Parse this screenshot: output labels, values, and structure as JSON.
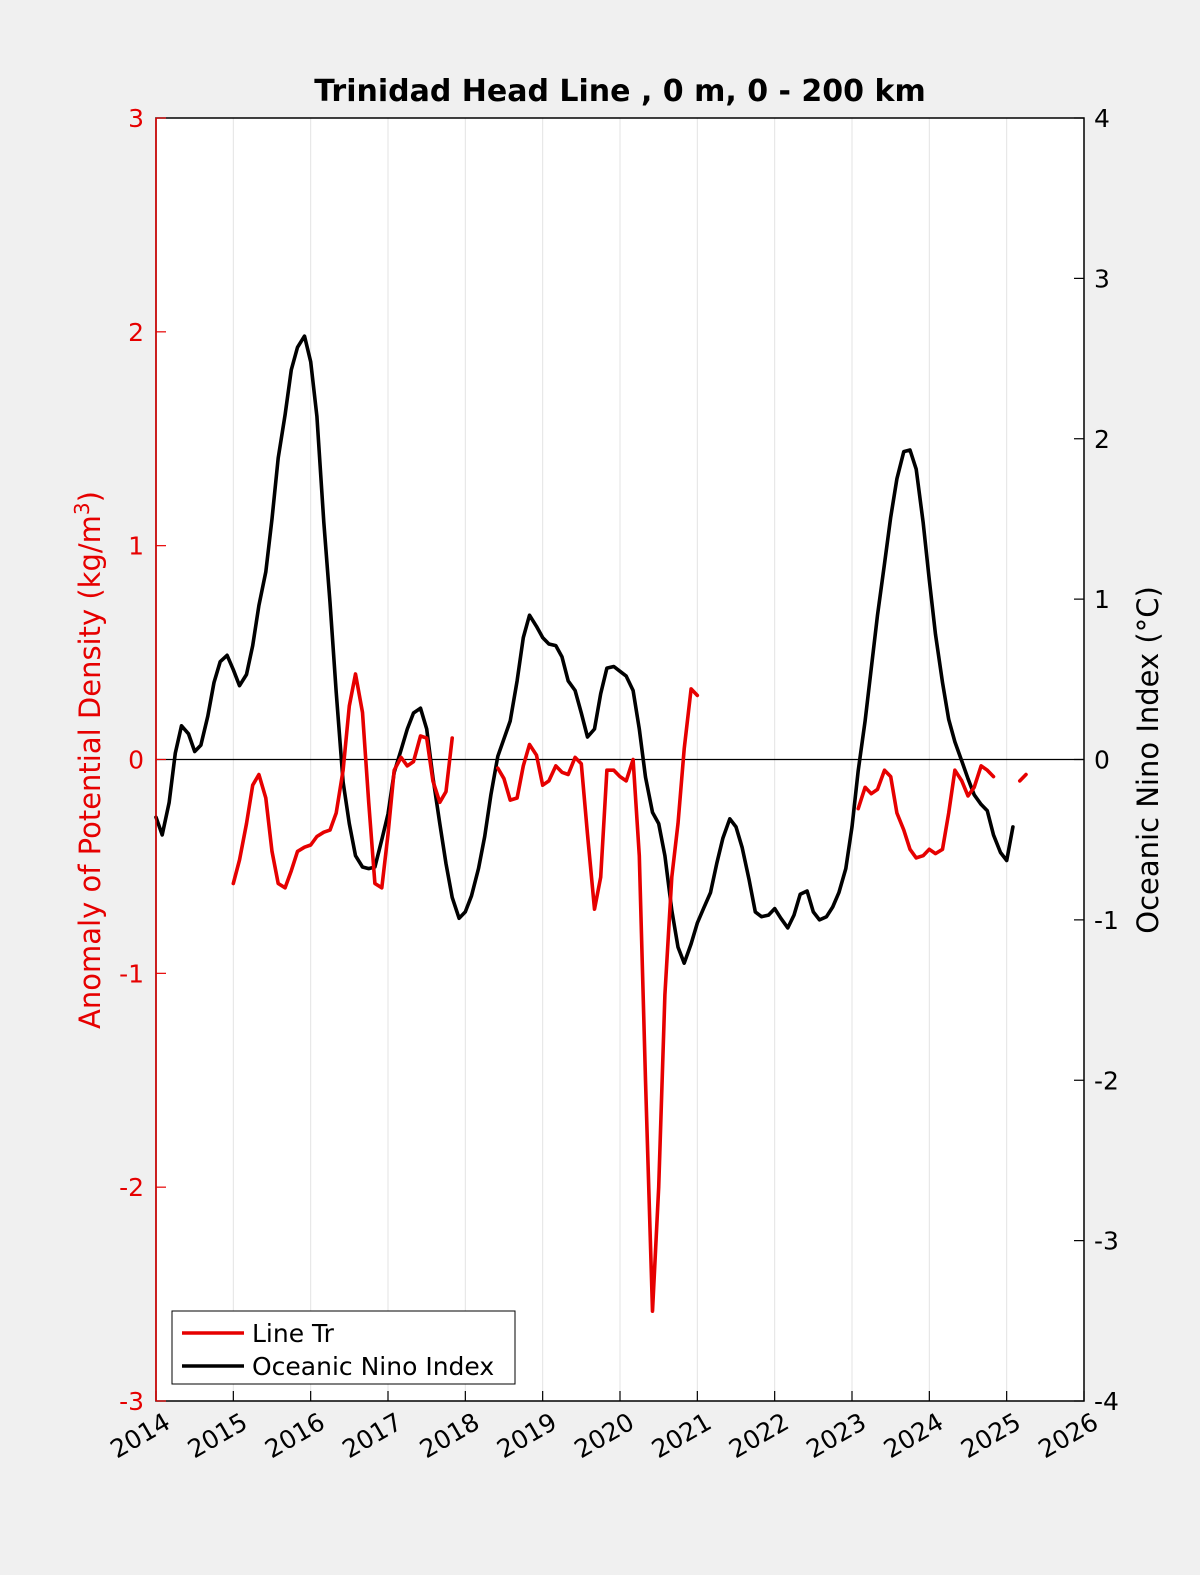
{
  "chart_data": {
    "type": "line",
    "title": "Trinidad Head Line , 0 m, 0 - 200 km",
    "ylabel_left": "Anomaly of Potential Density (kg/m",
    "ylabel_left_superscript": "3",
    "ylabel_left_close": ")",
    "ylabel_right": "Oceanic Nino Index (°C)",
    "xlim": [
      2014,
      2026
    ],
    "ylim_left": [
      -3,
      3
    ],
    "ylim_right": [
      -4,
      4
    ],
    "x_ticks": [
      "2014",
      "2015",
      "2016",
      "2017",
      "2018",
      "2019",
      "2020",
      "2021",
      "2022",
      "2023",
      "2024",
      "2025",
      "2026"
    ],
    "y_ticks_left": [
      "3",
      "2",
      "1",
      "0",
      "-1",
      "-2",
      "-3"
    ],
    "y_ticks_right": [
      "4",
      "3",
      "2",
      "1",
      "0",
      "-1",
      "-2",
      "-3",
      "-4"
    ],
    "grid": "vertical",
    "zero_line": true,
    "legend_position": "bottom-left",
    "colors": {
      "line_tr": "#e60000",
      "oni": "#000000",
      "left_axis": "#e60000",
      "right_axis": "#000000"
    },
    "series": [
      {
        "name": "Line Tr",
        "axis": "left",
        "segments": [
          [
            [
              2015.0,
              -0.58
            ],
            [
              2015.08,
              -0.47
            ],
            [
              2015.17,
              -0.3
            ],
            [
              2015.25,
              -0.12
            ],
            [
              2015.33,
              -0.07
            ],
            [
              2015.42,
              -0.18
            ],
            [
              2015.5,
              -0.43
            ],
            [
              2015.58,
              -0.58
            ],
            [
              2015.67,
              -0.6
            ],
            [
              2015.75,
              -0.52
            ],
            [
              2015.83,
              -0.43
            ],
            [
              2015.92,
              -0.41
            ],
            [
              2016.0,
              -0.4
            ],
            [
              2016.08,
              -0.36
            ],
            [
              2016.17,
              -0.34
            ],
            [
              2016.25,
              -0.33
            ],
            [
              2016.33,
              -0.25
            ],
            [
              2016.42,
              -0.05
            ],
            [
              2016.5,
              0.25
            ],
            [
              2016.58,
              0.4
            ],
            [
              2016.67,
              0.22
            ],
            [
              2016.75,
              -0.2
            ],
            [
              2016.83,
              -0.58
            ],
            [
              2016.92,
              -0.6
            ],
            [
              2017.0,
              -0.35
            ],
            [
              2017.08,
              -0.05
            ],
            [
              2017.17,
              0.01
            ],
            [
              2017.25,
              -0.03
            ],
            [
              2017.33,
              -0.01
            ],
            [
              2017.42,
              0.11
            ],
            [
              2017.5,
              0.1
            ],
            [
              2017.58,
              -0.1
            ],
            [
              2017.67,
              -0.2
            ],
            [
              2017.75,
              -0.15
            ],
            [
              2017.83,
              0.1
            ]
          ],
          [
            [
              2018.42,
              -0.04
            ],
            [
              2018.5,
              -0.09
            ],
            [
              2018.58,
              -0.19
            ],
            [
              2018.67,
              -0.18
            ],
            [
              2018.75,
              -0.03
            ],
            [
              2018.83,
              0.07
            ],
            [
              2018.92,
              0.02
            ],
            [
              2019.0,
              -0.12
            ],
            [
              2019.08,
              -0.1
            ],
            [
              2019.17,
              -0.03
            ],
            [
              2019.25,
              -0.06
            ],
            [
              2019.33,
              -0.07
            ],
            [
              2019.42,
              0.01
            ],
            [
              2019.5,
              -0.02
            ],
            [
              2019.58,
              -0.35
            ],
            [
              2019.67,
              -0.7
            ],
            [
              2019.75,
              -0.55
            ],
            [
              2019.83,
              -0.05
            ],
            [
              2019.92,
              -0.05
            ],
            [
              2020.0,
              -0.08
            ],
            [
              2020.08,
              -0.1
            ],
            [
              2020.17,
              0.0
            ],
            [
              2020.25,
              -0.45
            ],
            [
              2020.33,
              -1.5
            ],
            [
              2020.42,
              -2.58
            ],
            [
              2020.5,
              -2.0
            ],
            [
              2020.58,
              -1.1
            ],
            [
              2020.67,
              -0.55
            ],
            [
              2020.75,
              -0.3
            ],
            [
              2020.83,
              0.05
            ],
            [
              2020.92,
              0.33
            ],
            [
              2021.0,
              0.3
            ]
          ],
          [
            [
              2023.08,
              -0.23
            ],
            [
              2023.17,
              -0.13
            ],
            [
              2023.25,
              -0.16
            ],
            [
              2023.33,
              -0.14
            ],
            [
              2023.42,
              -0.05
            ],
            [
              2023.5,
              -0.08
            ],
            [
              2023.58,
              -0.25
            ],
            [
              2023.67,
              -0.33
            ],
            [
              2023.75,
              -0.42
            ],
            [
              2023.83,
              -0.46
            ],
            [
              2023.92,
              -0.45
            ],
            [
              2024.0,
              -0.42
            ],
            [
              2024.08,
              -0.44
            ],
            [
              2024.17,
              -0.42
            ],
            [
              2024.25,
              -0.25
            ],
            [
              2024.33,
              -0.05
            ],
            [
              2024.42,
              -0.1
            ],
            [
              2024.5,
              -0.17
            ],
            [
              2024.58,
              -0.13
            ],
            [
              2024.67,
              -0.03
            ],
            [
              2024.75,
              -0.05
            ],
            [
              2024.83,
              -0.08
            ]
          ],
          [
            [
              2025.17,
              -0.1
            ],
            [
              2025.25,
              -0.07
            ]
          ]
        ]
      },
      {
        "name": "Oceanic Nino Index",
        "axis": "right",
        "segments": [
          [
            [
              2014.0,
              -0.36
            ],
            [
              2014.08,
              -0.47
            ],
            [
              2014.17,
              -0.27
            ],
            [
              2014.25,
              0.04
            ],
            [
              2014.33,
              0.21
            ],
            [
              2014.42,
              0.16
            ],
            [
              2014.5,
              0.05
            ],
            [
              2014.58,
              0.09
            ],
            [
              2014.67,
              0.27
            ],
            [
              2014.75,
              0.48
            ],
            [
              2014.83,
              0.61
            ],
            [
              2014.92,
              0.65
            ],
            [
              2015.0,
              0.56
            ],
            [
              2015.08,
              0.46
            ],
            [
              2015.17,
              0.53
            ],
            [
              2015.25,
              0.71
            ],
            [
              2015.33,
              0.96
            ],
            [
              2015.42,
              1.17
            ],
            [
              2015.5,
              1.5
            ],
            [
              2015.58,
              1.88
            ],
            [
              2015.67,
              2.15
            ],
            [
              2015.75,
              2.43
            ],
            [
              2015.83,
              2.57
            ],
            [
              2015.92,
              2.64
            ],
            [
              2016.0,
              2.48
            ],
            [
              2016.08,
              2.14
            ],
            [
              2016.17,
              1.48
            ],
            [
              2016.25,
              0.98
            ],
            [
              2016.33,
              0.42
            ],
            [
              2016.42,
              -0.14
            ],
            [
              2016.5,
              -0.4
            ],
            [
              2016.58,
              -0.6
            ],
            [
              2016.67,
              -0.67
            ],
            [
              2016.75,
              -0.68
            ],
            [
              2016.83,
              -0.67
            ],
            [
              2016.92,
              -0.5
            ],
            [
              2017.0,
              -0.34
            ],
            [
              2017.08,
              -0.08
            ],
            [
              2017.17,
              0.06
            ],
            [
              2017.25,
              0.19
            ],
            [
              2017.33,
              0.29
            ],
            [
              2017.42,
              0.32
            ],
            [
              2017.5,
              0.19
            ],
            [
              2017.58,
              -0.11
            ],
            [
              2017.67,
              -0.4
            ],
            [
              2017.75,
              -0.65
            ],
            [
              2017.83,
              -0.86
            ],
            [
              2017.92,
              -0.99
            ],
            [
              2018.0,
              -0.95
            ],
            [
              2018.08,
              -0.85
            ],
            [
              2018.17,
              -0.68
            ],
            [
              2018.25,
              -0.48
            ],
            [
              2018.33,
              -0.22
            ],
            [
              2018.42,
              0.02
            ],
            [
              2018.5,
              0.13
            ],
            [
              2018.58,
              0.24
            ],
            [
              2018.67,
              0.49
            ],
            [
              2018.75,
              0.76
            ],
            [
              2018.83,
              0.9
            ],
            [
              2018.92,
              0.83
            ],
            [
              2019.0,
              0.76
            ],
            [
              2019.08,
              0.72
            ],
            [
              2019.17,
              0.71
            ],
            [
              2019.25,
              0.64
            ],
            [
              2019.33,
              0.49
            ],
            [
              2019.42,
              0.43
            ],
            [
              2019.5,
              0.29
            ],
            [
              2019.58,
              0.14
            ],
            [
              2019.67,
              0.19
            ],
            [
              2019.75,
              0.41
            ],
            [
              2019.83,
              0.57
            ],
            [
              2019.92,
              0.58
            ],
            [
              2020.0,
              0.55
            ],
            [
              2020.08,
              0.52
            ],
            [
              2020.17,
              0.43
            ],
            [
              2020.25,
              0.19
            ],
            [
              2020.33,
              -0.11
            ],
            [
              2020.42,
              -0.33
            ],
            [
              2020.5,
              -0.4
            ],
            [
              2020.58,
              -0.6
            ],
            [
              2020.67,
              -0.94
            ],
            [
              2020.75,
              -1.17
            ],
            [
              2020.83,
              -1.27
            ],
            [
              2020.92,
              -1.15
            ],
            [
              2021.0,
              -1.02
            ],
            [
              2021.08,
              -0.93
            ],
            [
              2021.17,
              -0.83
            ],
            [
              2021.25,
              -0.65
            ],
            [
              2021.33,
              -0.49
            ],
            [
              2021.42,
              -0.37
            ],
            [
              2021.5,
              -0.42
            ],
            [
              2021.58,
              -0.55
            ],
            [
              2021.67,
              -0.75
            ],
            [
              2021.75,
              -0.95
            ],
            [
              2021.83,
              -0.98
            ],
            [
              2021.92,
              -0.97
            ],
            [
              2022.0,
              -0.93
            ],
            [
              2022.08,
              -0.99
            ],
            [
              2022.17,
              -1.05
            ],
            [
              2022.25,
              -0.97
            ],
            [
              2022.33,
              -0.84
            ],
            [
              2022.42,
              -0.82
            ],
            [
              2022.5,
              -0.95
            ],
            [
              2022.58,
              -1.0
            ],
            [
              2022.67,
              -0.98
            ],
            [
              2022.75,
              -0.92
            ],
            [
              2022.83,
              -0.83
            ],
            [
              2022.92,
              -0.68
            ],
            [
              2023.0,
              -0.42
            ],
            [
              2023.08,
              -0.07
            ],
            [
              2023.17,
              0.24
            ],
            [
              2023.25,
              0.57
            ],
            [
              2023.33,
              0.9
            ],
            [
              2023.42,
              1.22
            ],
            [
              2023.5,
              1.51
            ],
            [
              2023.58,
              1.75
            ],
            [
              2023.67,
              1.92
            ],
            [
              2023.75,
              1.93
            ],
            [
              2023.83,
              1.81
            ],
            [
              2023.92,
              1.48
            ],
            [
              2024.0,
              1.12
            ],
            [
              2024.08,
              0.78
            ],
            [
              2024.17,
              0.48
            ],
            [
              2024.25,
              0.25
            ],
            [
              2024.33,
              0.11
            ],
            [
              2024.42,
              -0.01
            ],
            [
              2024.5,
              -0.12
            ],
            [
              2024.58,
              -0.22
            ],
            [
              2024.67,
              -0.28
            ],
            [
              2024.75,
              -0.32
            ],
            [
              2024.83,
              -0.47
            ],
            [
              2024.92,
              -0.58
            ],
            [
              2025.0,
              -0.63
            ],
            [
              2025.08,
              -0.42
            ]
          ]
        ]
      }
    ]
  }
}
